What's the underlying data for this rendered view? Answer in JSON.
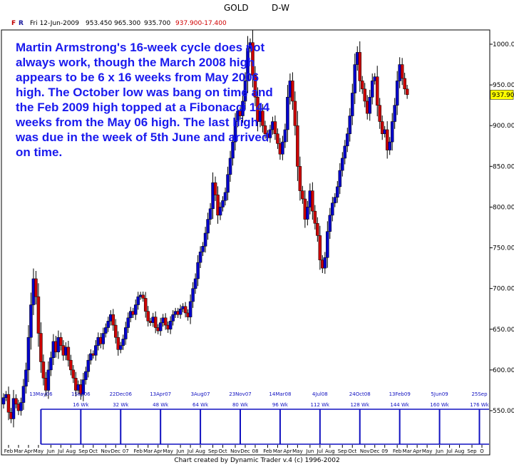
{
  "header": {
    "symbol": "GOLD",
    "period": "D-W"
  },
  "infobar": {
    "f": "F",
    "r": "R",
    "date": "Fri 12-Jun-2009",
    "open": "953.450",
    "high": "965.300",
    "low": "935.700",
    "close": "937.900",
    "change": "-17.400"
  },
  "annotation": "Martin Armstrong's 16-week cycle does not always work, though the March 2008 high appears to be 6 x 16 weeks from May 2006 high. The October low was bang on time and the Feb 2009 high topped at a Fibonacci 144 weeks from the May 06 high. The last high was due in the week of 5th June and arrived on time.",
  "credit": "Chart created by Dynamic Trader v.4  (c) 1996-2002",
  "colors": {
    "up": "#0000cc",
    "down": "#cc0000",
    "cycle": "#1010c0",
    "annotation": "#1a1aee",
    "price_box": "#ffff00"
  },
  "chart_data": {
    "type": "candlestick",
    "ylim": [
      530,
      1020
    ],
    "y_ticks": [
      550,
      600,
      650,
      700,
      750,
      800,
      850,
      900,
      950,
      1000
    ],
    "y_tick_labels": [
      "550.000",
      "600.000",
      "650.000",
      "700.000",
      "750.000",
      "800.000",
      "850.000",
      "900.000",
      "950.000",
      "1000.000"
    ],
    "last_price_label": "937.900",
    "x_tick_labels": [
      "Feb",
      "Mar",
      "Apr",
      "May",
      "Jun",
      "Jul",
      "Aug",
      "Sep",
      "Oct",
      "Nov",
      "Dec",
      "07",
      "Feb",
      "Mar",
      "Apr",
      "May",
      "Jun",
      "Jul",
      "Aug",
      "Sep",
      "Oct",
      "Nov",
      "Dec",
      "08",
      "Feb",
      "Mar",
      "Apr",
      "May",
      "Jun",
      "Jul",
      "Aug",
      "Sep",
      "Oct",
      "Nov",
      "Dec",
      "09",
      "Feb",
      "Mar",
      "Apr",
      "May",
      "Jun",
      "Jul",
      "Aug",
      "Sep",
      "O"
    ],
    "x_tick_weeks": [
      2,
      6,
      10,
      14,
      19,
      23,
      27,
      32,
      36,
      41,
      45,
      49,
      54,
      58,
      62,
      66,
      71,
      75,
      79,
      84,
      88,
      93,
      97,
      101,
      106,
      110,
      114,
      118,
      123,
      127,
      131,
      136,
      140,
      145,
      149,
      153,
      158,
      162,
      166,
      170,
      175,
      179,
      183,
      188,
      192
    ],
    "cycle_markers": [
      {
        "date": "13May06",
        "label": "",
        "week": 15
      },
      {
        "date": "1Sep06",
        "label": "16 Wk",
        "week": 31
      },
      {
        "date": "22Dec06",
        "label": "32 Wk",
        "week": 47
      },
      {
        "date": "13Apr07",
        "label": "48 Wk",
        "week": 63
      },
      {
        "date": "3Aug07",
        "label": "64 Wk",
        "week": 79
      },
      {
        "date": "23Nov07",
        "label": "80 Wk",
        "week": 95
      },
      {
        "date": "14Mar08",
        "label": "96 Wk",
        "week": 111
      },
      {
        "date": "4Jul08",
        "label": "112 Wk",
        "week": 127
      },
      {
        "date": "24Oct08",
        "label": "128 Wk",
        "week": 143
      },
      {
        "date": "13Feb09",
        "week": 159,
        "label": "144 Wk"
      },
      {
        "date": "5Jun09",
        "label": "160 Wk",
        "week": 175
      },
      {
        "date": "25Sep",
        "label": "176 Wk",
        "week": 191
      }
    ],
    "weekly_close": [
      566,
      570,
      548,
      540,
      565,
      558,
      550,
      560,
      580,
      600,
      640,
      680,
      712,
      690,
      645,
      610,
      590,
      575,
      600,
      615,
      635,
      622,
      640,
      630,
      618,
      628,
      612,
      600,
      590,
      575,
      582,
      570,
      588,
      598,
      612,
      620,
      618,
      630,
      640,
      632,
      645,
      652,
      660,
      668,
      655,
      640,
      625,
      630,
      638,
      652,
      664,
      672,
      668,
      680,
      690,
      692,
      688,
      672,
      660,
      658,
      665,
      652,
      648,
      658,
      664,
      655,
      650,
      660,
      668,
      672,
      668,
      675,
      678,
      670,
      665,
      684,
      700,
      712,
      732,
      745,
      752,
      768,
      785,
      798,
      830,
      815,
      790,
      800,
      808,
      818,
      840,
      860,
      880,
      905,
      918,
      912,
      930,
      955,
      995,
      1002,
      962,
      935,
      905,
      918,
      900,
      890,
      885,
      895,
      905,
      890,
      878,
      865,
      880,
      895,
      935,
      955,
      930,
      900,
      850,
      820,
      810,
      785,
      800,
      820,
      795,
      780,
      765,
      735,
      725,
      738,
      770,
      790,
      805,
      812,
      825,
      845,
      860,
      875,
      890,
      912,
      940,
      975,
      990,
      955,
      945,
      930,
      915,
      935,
      955,
      960,
      925,
      905,
      890,
      895,
      870,
      880,
      905,
      925,
      955,
      975,
      958,
      945,
      938
    ],
    "week_offset": 0
  }
}
